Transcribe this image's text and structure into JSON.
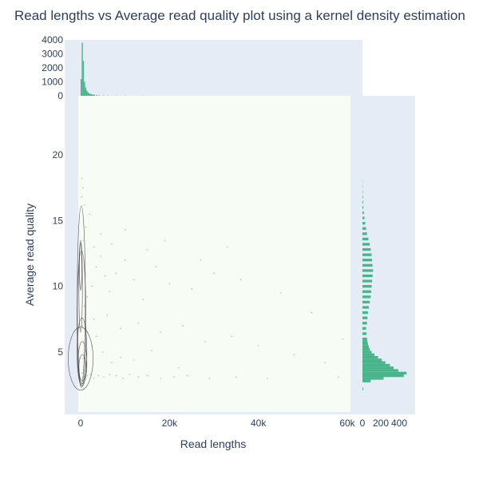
{
  "chart_data": {
    "type": "scatter",
    "title": "Read lengths vs Average read quality plot using a kernel density estimation",
    "xlabel": "Read lengths",
    "ylabel": "Average read quality",
    "xlim": [
      -2000,
      60000
    ],
    "ylim": [
      1,
      24
    ],
    "x_ticks": [
      {
        "v": 0,
        "label": "0"
      },
      {
        "v": 20000,
        "label": "20k"
      },
      {
        "v": 40000,
        "label": "40k"
      },
      {
        "v": 60000,
        "label": "60k"
      }
    ],
    "y_ticks": [
      {
        "v": 5,
        "label": "5"
      },
      {
        "v": 10,
        "label": "10"
      },
      {
        "v": 15,
        "label": "15"
      },
      {
        "v": 20,
        "label": "20"
      }
    ],
    "top_hist": {
      "ylim": [
        0,
        4000
      ],
      "y_ticks": [
        {
          "v": 0,
          "label": "0"
        },
        {
          "v": 1000,
          "label": "1000"
        },
        {
          "v": 2000,
          "label": "2000"
        },
        {
          "v": 3000,
          "label": "3000"
        },
        {
          "v": 4000,
          "label": "4000"
        }
      ],
      "bin_width": 250,
      "bins": [
        {
          "x": 0,
          "count": 1200
        },
        {
          "x": 250,
          "count": 3800
        },
        {
          "x": 500,
          "count": 2500
        },
        {
          "x": 750,
          "count": 1000
        },
        {
          "x": 1000,
          "count": 600
        },
        {
          "x": 1250,
          "count": 380
        },
        {
          "x": 1500,
          "count": 260
        },
        {
          "x": 1750,
          "count": 190
        },
        {
          "x": 2000,
          "count": 150
        },
        {
          "x": 2250,
          "count": 120
        },
        {
          "x": 2500,
          "count": 100
        },
        {
          "x": 2750,
          "count": 85
        },
        {
          "x": 3000,
          "count": 70
        },
        {
          "x": 3500,
          "count": 55
        },
        {
          "x": 4000,
          "count": 40
        },
        {
          "x": 5000,
          "count": 30
        },
        {
          "x": 6000,
          "count": 22
        },
        {
          "x": 8000,
          "count": 15
        },
        {
          "x": 10000,
          "count": 10
        },
        {
          "x": 14000,
          "count": 8
        },
        {
          "x": 20000,
          "count": 5
        },
        {
          "x": 30000,
          "count": 3
        },
        {
          "x": 40000,
          "count": 2
        },
        {
          "x": 59000,
          "count": 1
        }
      ]
    },
    "right_hist": {
      "xlim": [
        0,
        520
      ],
      "x_ticks": [
        {
          "v": 0,
          "label": "0"
        },
        {
          "v": 200,
          "label": "200"
        },
        {
          "v": 400,
          "label": "400"
        }
      ],
      "bin_width": 0.2,
      "bins": [
        {
          "y": 2.2,
          "count": 8
        },
        {
          "y": 2.8,
          "count": 90
        },
        {
          "y": 3.0,
          "count": 230
        },
        {
          "y": 3.2,
          "count": 450
        },
        {
          "y": 3.4,
          "count": 480
        },
        {
          "y": 3.6,
          "count": 390
        },
        {
          "y": 3.8,
          "count": 340
        },
        {
          "y": 4.0,
          "count": 300
        },
        {
          "y": 4.2,
          "count": 250
        },
        {
          "y": 4.4,
          "count": 210
        },
        {
          "y": 4.6,
          "count": 170
        },
        {
          "y": 4.8,
          "count": 130
        },
        {
          "y": 5.0,
          "count": 100
        },
        {
          "y": 5.2,
          "count": 80
        },
        {
          "y": 5.4,
          "count": 70
        },
        {
          "y": 5.6,
          "count": 60
        },
        {
          "y": 5.8,
          "count": 55
        },
        {
          "y": 6.0,
          "count": 50
        },
        {
          "y": 6.4,
          "count": 45
        },
        {
          "y": 6.8,
          "count": 40
        },
        {
          "y": 7.2,
          "count": 50
        },
        {
          "y": 7.6,
          "count": 55
        },
        {
          "y": 8.0,
          "count": 60
        },
        {
          "y": 8.4,
          "count": 70
        },
        {
          "y": 8.8,
          "count": 80
        },
        {
          "y": 9.2,
          "count": 90
        },
        {
          "y": 9.6,
          "count": 95
        },
        {
          "y": 10.0,
          "count": 100
        },
        {
          "y": 10.4,
          "count": 105
        },
        {
          "y": 10.8,
          "count": 110
        },
        {
          "y": 11.2,
          "count": 115
        },
        {
          "y": 11.6,
          "count": 110
        },
        {
          "y": 12.0,
          "count": 105
        },
        {
          "y": 12.4,
          "count": 100
        },
        {
          "y": 12.8,
          "count": 90
        },
        {
          "y": 13.2,
          "count": 80
        },
        {
          "y": 13.6,
          "count": 65
        },
        {
          "y": 14.0,
          "count": 50
        },
        {
          "y": 14.4,
          "count": 40
        },
        {
          "y": 14.8,
          "count": 30
        },
        {
          "y": 15.2,
          "count": 22
        },
        {
          "y": 15.6,
          "count": 15
        },
        {
          "y": 16.0,
          "count": 10
        },
        {
          "y": 16.4,
          "count": 8
        },
        {
          "y": 16.8,
          "count": 6
        },
        {
          "y": 17.2,
          "count": 4
        },
        {
          "y": 17.6,
          "count": 3
        },
        {
          "y": 18.0,
          "count": 2
        }
      ]
    },
    "scatter_points": [
      [
        300,
        3.4
      ],
      [
        600,
        3.1
      ],
      [
        900,
        3.6
      ],
      [
        1500,
        3.2
      ],
      [
        2200,
        3.3
      ],
      [
        3000,
        3.0
      ],
      [
        4000,
        3.2
      ],
      [
        5200,
        3.1
      ],
      [
        6500,
        3.3
      ],
      [
        8000,
        3.2
      ],
      [
        9500,
        3.0
      ],
      [
        11000,
        3.3
      ],
      [
        13000,
        3.1
      ],
      [
        15000,
        3.2
      ],
      [
        18000,
        3.0
      ],
      [
        21000,
        3.1
      ],
      [
        24000,
        3.2
      ],
      [
        29000,
        3.0
      ],
      [
        35000,
        3.1
      ],
      [
        42000,
        3.0
      ],
      [
        58000,
        3.1
      ],
      [
        500,
        4.5
      ],
      [
        1200,
        4.8
      ],
      [
        2500,
        5.5
      ],
      [
        3500,
        6.2
      ],
      [
        5000,
        5.0
      ],
      [
        7000,
        4.2
      ],
      [
        9000,
        4.6
      ],
      [
        12000,
        4.4
      ],
      [
        16000,
        5.1
      ],
      [
        22000,
        3.8
      ],
      [
        400,
        7.0
      ],
      [
        800,
        8.5
      ],
      [
        1500,
        9.2
      ],
      [
        2500,
        10.0
      ],
      [
        3500,
        11.5
      ],
      [
        4500,
        12.3
      ],
      [
        5500,
        10.8
      ],
      [
        6500,
        9.6
      ],
      [
        8000,
        11.0
      ],
      [
        10000,
        12.0
      ],
      [
        12000,
        10.5
      ],
      [
        14000,
        9.0
      ],
      [
        17000,
        11.5
      ],
      [
        20000,
        10.2
      ],
      [
        25000,
        9.8
      ],
      [
        30000,
        11.0
      ],
      [
        36000,
        10.5
      ],
      [
        45000,
        9.5
      ],
      [
        52000,
        8.0
      ],
      [
        59000,
        6.0
      ],
      [
        600,
        13.5
      ],
      [
        1200,
        14.5
      ],
      [
        2000,
        15.5
      ],
      [
        3000,
        13.0
      ],
      [
        4500,
        14.0
      ],
      [
        7000,
        13.2
      ],
      [
        10000,
        14.3
      ],
      [
        15000,
        12.8
      ],
      [
        19000,
        13.5
      ],
      [
        27000,
        12.0
      ],
      [
        33000,
        13.0
      ],
      [
        200,
        16.8
      ],
      [
        500,
        17.5
      ],
      [
        300,
        18.2
      ],
      [
        900,
        16.2
      ],
      [
        1500,
        6.5
      ],
      [
        3000,
        7.5
      ],
      [
        6000,
        7.8
      ],
      [
        9000,
        6.8
      ],
      [
        13000,
        7.2
      ],
      [
        18000,
        6.5
      ],
      [
        23000,
        7.0
      ],
      [
        28000,
        5.8
      ],
      [
        34000,
        6.2
      ],
      [
        40000,
        5.5
      ],
      [
        48000,
        4.8
      ],
      [
        55000,
        4.2
      ],
      [
        700,
        2.2
      ],
      [
        100,
        2.5
      ]
    ],
    "kde_contours": [
      {
        "cx": 400,
        "cy": 3.8,
        "rx": 800,
        "ry": 1.0
      },
      {
        "cx": 400,
        "cy": 4.2,
        "rx": 1000,
        "ry": 1.6
      },
      {
        "cx": 300,
        "cy": 5.0,
        "rx": 1100,
        "ry": 2.6
      },
      {
        "cx": 200,
        "cy": 7.5,
        "rx": 1000,
        "ry": 5.2
      },
      {
        "cx": 150,
        "cy": 9.3,
        "rx": 900,
        "ry": 6.8
      },
      {
        "cx": 0,
        "cy": 4.5,
        "rx": 2800,
        "ry": 2.4
      },
      {
        "cx": 0,
        "cy": 10.0,
        "rx": 400,
        "ry": 3.5
      },
      {
        "cx": 0,
        "cy": 11.5,
        "rx": 250,
        "ry": 1.8
      }
    ],
    "colors": {
      "histogram": "#49b38a",
      "background": "#e5ecf6",
      "density_panel": "#f7fcf5",
      "contour": "#3a3a3a",
      "text": "#2a3f5f"
    },
    "grid": false
  }
}
